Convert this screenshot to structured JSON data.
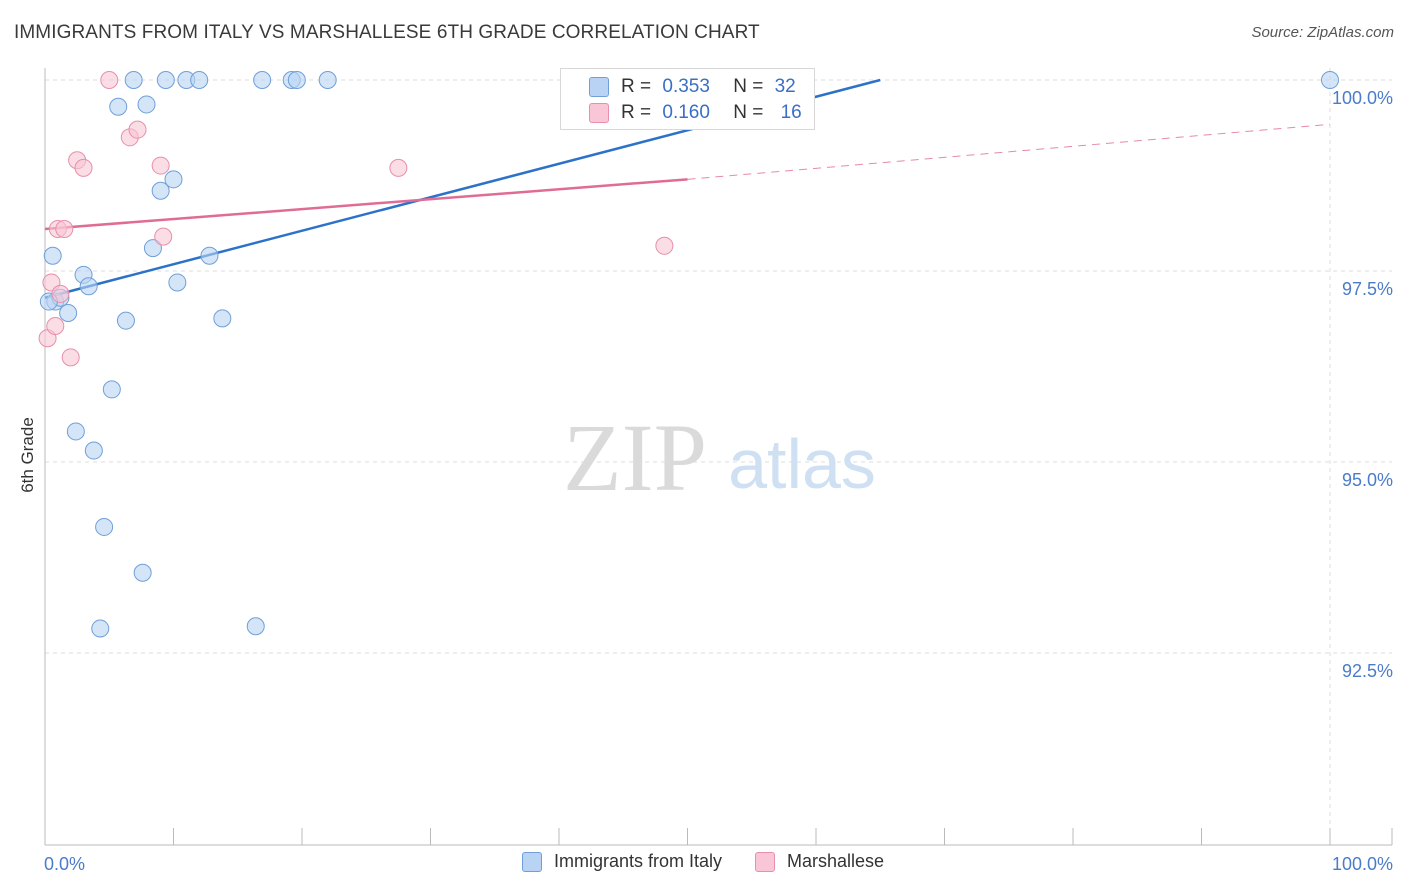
{
  "title": "IMMIGRANTS FROM ITALY VS MARSHALLESE 6TH GRADE CORRELATION CHART",
  "source": "Source: ZipAtlas.com",
  "watermark": {
    "zip": "ZIP",
    "atlas": "atlas"
  },
  "colors": {
    "italy_fill": "#b8d3f4",
    "italy_stroke": "#6f9fd8",
    "italy_line": "#2b72c8",
    "marsh_fill": "#f8c6d6",
    "marsh_stroke": "#e88fab",
    "marsh_line": "#e06c95",
    "tick_label": "#4a7cc9",
    "grid": "#dedede"
  },
  "stats": {
    "italy": {
      "r_label": "R =",
      "r": "0.353",
      "n_label": "N =",
      "n": "32"
    },
    "marsh": {
      "r_label": "R =",
      "r": "0.160",
      "n_label": "N =",
      "n": "16"
    }
  },
  "chart_data": {
    "type": "scatter",
    "title": "IMMIGRANTS FROM ITALY VS MARSHALLESE 6TH GRADE CORRELATION CHART",
    "xlabel": "",
    "ylabel": "6th Grade",
    "xlim": [
      0,
      100
    ],
    "ylim": [
      90.3,
      100.4
    ],
    "x_tick_labels": [
      "0.0%",
      "100.0%"
    ],
    "y_ticks": [
      {
        "value": 100.0,
        "label": "100.0%"
      },
      {
        "value": 97.5,
        "label": "97.5%"
      },
      {
        "value": 95.0,
        "label": "95.0%"
      },
      {
        "value": 92.5,
        "label": "92.5%"
      }
    ],
    "series": [
      {
        "name": "Immigrants from Italy",
        "color": "#b8d3f4",
        "points": [
          {
            "x": 0.6,
            "y": 97.7
          },
          {
            "x": 0.8,
            "y": 97.1
          },
          {
            "x": 1.2,
            "y": 97.15
          },
          {
            "x": 1.8,
            "y": 96.95
          },
          {
            "x": 2.4,
            "y": 95.4
          },
          {
            "x": 3.0,
            "y": 97.45
          },
          {
            "x": 3.4,
            "y": 97.3
          },
          {
            "x": 3.8,
            "y": 95.15
          },
          {
            "x": 4.3,
            "y": 92.82
          },
          {
            "x": 4.6,
            "y": 94.15
          },
          {
            "x": 5.2,
            "y": 95.95
          },
          {
            "x": 5.7,
            "y": 99.65
          },
          {
            "x": 6.3,
            "y": 96.85
          },
          {
            "x": 6.9,
            "y": 100.0
          },
          {
            "x": 7.6,
            "y": 93.55
          },
          {
            "x": 7.9,
            "y": 99.68
          },
          {
            "x": 8.4,
            "y": 97.8
          },
          {
            "x": 9.0,
            "y": 98.55
          },
          {
            "x": 9.4,
            "y": 100.0
          },
          {
            "x": 10.0,
            "y": 98.7
          },
          {
            "x": 10.3,
            "y": 97.35
          },
          {
            "x": 11.0,
            "y": 100.0
          },
          {
            "x": 12.0,
            "y": 100.0
          },
          {
            "x": 12.8,
            "y": 97.7
          },
          {
            "x": 13.8,
            "y": 96.88
          },
          {
            "x": 16.4,
            "y": 92.85
          },
          {
            "x": 16.9,
            "y": 100.0
          },
          {
            "x": 19.2,
            "y": 100.0
          },
          {
            "x": 19.6,
            "y": 100.0
          },
          {
            "x": 22.0,
            "y": 100.0
          },
          {
            "x": 0.3,
            "y": 97.1
          },
          {
            "x": 100.0,
            "y": 100.0
          }
        ]
      },
      {
        "name": "Marshallese",
        "color": "#f8c6d6",
        "points": [
          {
            "x": 0.2,
            "y": 96.62
          },
          {
            "x": 0.5,
            "y": 97.35
          },
          {
            "x": 0.8,
            "y": 96.78
          },
          {
            "x": 1.0,
            "y": 98.05
          },
          {
            "x": 1.5,
            "y": 98.05
          },
          {
            "x": 2.0,
            "y": 96.37
          },
          {
            "x": 2.5,
            "y": 98.95
          },
          {
            "x": 3.0,
            "y": 98.85
          },
          {
            "x": 5.0,
            "y": 100.0
          },
          {
            "x": 6.6,
            "y": 99.25
          },
          {
            "x": 7.2,
            "y": 99.35
          },
          {
            "x": 9.0,
            "y": 98.88
          },
          {
            "x": 9.2,
            "y": 97.95
          },
          {
            "x": 27.5,
            "y": 98.85
          },
          {
            "x": 48.2,
            "y": 97.83
          },
          {
            "x": 1.2,
            "y": 97.2
          }
        ]
      }
    ],
    "trend_lines": [
      {
        "series": "Immigrants from Italy",
        "x1": 0,
        "y1": 97.15,
        "x2": 65,
        "y2": 100.0,
        "style": "solid"
      },
      {
        "series": "Marshallese",
        "x1": 0,
        "y1": 98.05,
        "x2": 50,
        "y2": 98.7,
        "style": "solid"
      },
      {
        "series": "Marshallese",
        "x1": 50,
        "y1": 98.7,
        "x2": 100,
        "y2": 99.42,
        "style": "dashed"
      }
    ],
    "legend": {
      "position": "bottom",
      "entries": [
        "Immigrants from Italy",
        "Marshallese"
      ]
    }
  }
}
